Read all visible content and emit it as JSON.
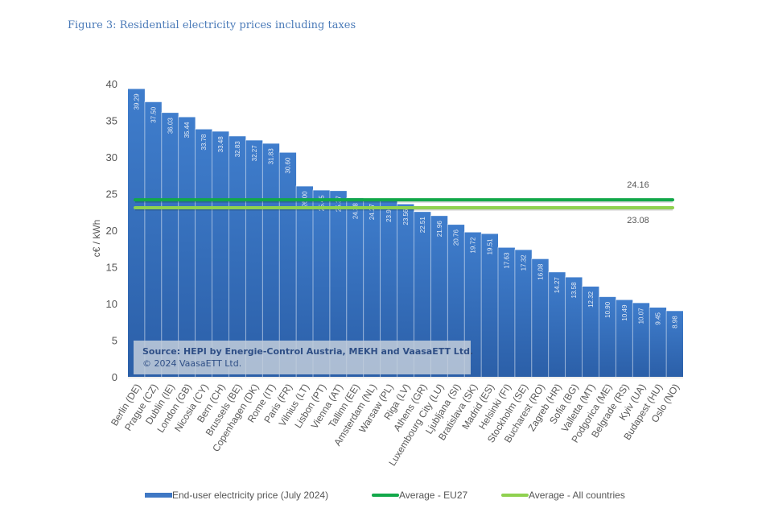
{
  "figure_title": "Figure 3: Residential electricity prices including taxes",
  "chart_data": {
    "type": "bar",
    "title": "Figure 3: Residential electricity prices including taxes",
    "xlabel": "",
    "ylabel": "c€ / kWh",
    "ylim": [
      0,
      40
    ],
    "yticks": [
      0,
      5,
      10,
      15,
      20,
      25,
      30,
      35,
      40
    ],
    "grid": false,
    "legend_position": "bottom",
    "categories": [
      "Berlin (DE)",
      "Prague (CZ)",
      "Dublin (IE)",
      "London (GB)",
      "Nicosia (CY)",
      "Bern (CH)",
      "Brussels (BE)",
      "Copenhagen (DK)",
      "Rome (IT)",
      "Paris (FR)",
      "Vilnius (LT)",
      "Lisbon (PT)",
      "Vienna (AT)",
      "Tallinn (EE)",
      "Amsterdam (NL)",
      "Warsaw (PL)",
      "Riga (LV)",
      "Athens (GR)",
      "Luxembourg City (LU)",
      "Ljubljana (SI)",
      "Bratislava (SK)",
      "Madrid (ES)",
      "Helsinki (FI)",
      "Stockholm (SE)",
      "Bucharest (RO)",
      "Zagreb (HR)",
      "Sofia (BG)",
      "Valletta (MT)",
      "Podgorica (ME)",
      "Belgrade (RS)",
      "Kyiv (UA)",
      "Budapest (HU)",
      "Oslo (NO)"
    ],
    "series": [
      {
        "name": "End-user electricity price (July 2024)",
        "color": "#3f78c4",
        "values": [
          39.29,
          37.5,
          36.03,
          35.44,
          33.78,
          33.48,
          32.83,
          32.27,
          31.83,
          30.6,
          26.0,
          25.45,
          25.37,
          24.38,
          24.27,
          23.97,
          23.56,
          22.51,
          21.96,
          20.76,
          19.72,
          19.51,
          17.63,
          17.32,
          16.08,
          14.27,
          13.58,
          12.32,
          10.9,
          10.49,
          10.07,
          9.45,
          8.98
        ],
        "labels": [
          "39.29",
          "37.50",
          "36.03",
          "35.44",
          "33.78",
          "33.48",
          "32.83",
          "32.27",
          "31.83",
          "30.60",
          "26.00",
          "25.45",
          "25.37",
          "24.38",
          "24.27",
          "23.97",
          "23.56",
          "22.51",
          "21.96",
          "20.76",
          "19.72",
          "19.51",
          "17.63",
          "17.32",
          "16.08",
          "14.27",
          "13.58",
          "12.32",
          "10.90",
          "10.49",
          "10.07",
          "9.45",
          "8.98"
        ]
      }
    ],
    "reference_lines": [
      {
        "name": "Average - EU27",
        "value": 24.16,
        "label": "24.16",
        "color": "#12a84a"
      },
      {
        "name": "Average - All countries",
        "value": 23.08,
        "label": "23.08",
        "color": "#8fd14f"
      }
    ],
    "annotation": {
      "line1": "Source: HEPI by Energie-Control Austria, MEKH and VaasaETT Ltd.",
      "line2": "© 2024 VaasaETT Ltd."
    }
  },
  "legend": [
    {
      "label": "End-user electricity price (July 2024)",
      "color": "#3f78c4",
      "kind": "bar"
    },
    {
      "label": "Average - EU27",
      "color": "#12a84a",
      "kind": "line"
    },
    {
      "label": "Average - All countries",
      "color": "#8fd14f",
      "kind": "line"
    }
  ]
}
